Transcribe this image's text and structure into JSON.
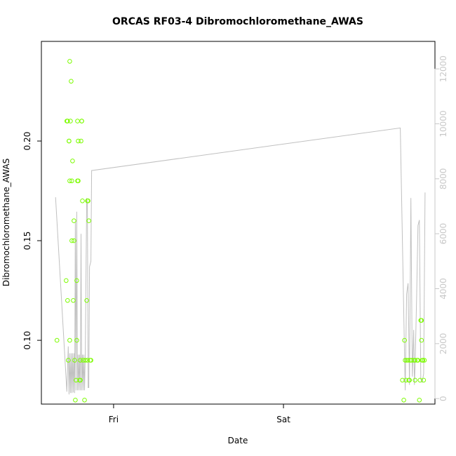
{
  "chart_data": {
    "type": "scatter",
    "title": "ORCAS RF03-4 Dibromochloromethane_AWAS",
    "xlabel": "Date",
    "ylabel": "Dibromochloromethane_AWAS",
    "x_ticks": [
      {
        "label": "Fri",
        "hours": 12
      },
      {
        "label": "Sat",
        "hours": 36
      }
    ],
    "xlim_hours": [
      1.8,
      57.4
    ],
    "ylim": [
      0.068,
      0.25
    ],
    "y_ticks": [
      "0.10",
      "0.15",
      "0.20"
    ],
    "y2lim": [
      -200,
      13000
    ],
    "y2_ticks": [
      "0",
      "2000",
      "4000",
      "6000",
      "8000",
      "10000",
      "12000"
    ],
    "grid": false,
    "point_color": "#7cfc00",
    "line_color": "#c0c0c0",
    "points": [
      [
        4.0,
        0.1
      ],
      [
        5.3,
        0.13
      ],
      [
        5.4,
        0.21
      ],
      [
        5.5,
        0.21
      ],
      [
        5.5,
        0.12
      ],
      [
        5.6,
        0.09
      ],
      [
        5.7,
        0.2
      ],
      [
        5.7,
        0.2
      ],
      [
        5.8,
        0.18
      ],
      [
        5.8,
        0.1
      ],
      [
        5.8,
        0.24
      ],
      [
        5.9,
        0.21
      ],
      [
        6.0,
        0.23
      ],
      [
        6.1,
        0.15
      ],
      [
        6.1,
        0.18
      ],
      [
        6.2,
        0.19
      ],
      [
        6.3,
        0.12
      ],
      [
        6.4,
        0.16
      ],
      [
        6.4,
        0.15
      ],
      [
        6.5,
        0.09
      ],
      [
        6.6,
        0.07
      ],
      [
        6.7,
        0.08
      ],
      [
        6.8,
        0.1
      ],
      [
        6.8,
        0.13
      ],
      [
        6.9,
        0.21
      ],
      [
        6.9,
        0.18
      ],
      [
        7.0,
        0.2
      ],
      [
        7.0,
        0.18
      ],
      [
        7.2,
        0.08
      ],
      [
        7.3,
        0.08
      ],
      [
        7.3,
        0.09
      ],
      [
        7.4,
        0.2
      ],
      [
        7.5,
        0.21
      ],
      [
        7.5,
        0.21
      ],
      [
        7.6,
        0.17
      ],
      [
        7.7,
        0.09
      ],
      [
        7.9,
        0.07
      ],
      [
        8.0,
        0.09
      ],
      [
        8.2,
        0.12
      ],
      [
        8.3,
        0.09
      ],
      [
        8.3,
        0.17
      ],
      [
        8.4,
        0.17
      ],
      [
        8.5,
        0.16
      ],
      [
        8.7,
        0.09
      ],
      [
        8.8,
        0.09
      ],
      [
        52.8,
        0.08
      ],
      [
        53.0,
        0.07
      ],
      [
        53.1,
        0.1
      ],
      [
        53.2,
        0.09
      ],
      [
        53.3,
        0.08
      ],
      [
        53.4,
        0.09
      ],
      [
        53.6,
        0.09
      ],
      [
        53.7,
        0.08
      ],
      [
        53.8,
        0.08
      ],
      [
        53.9,
        0.09
      ],
      [
        54.1,
        0.09
      ],
      [
        54.4,
        0.09
      ],
      [
        54.6,
        0.08
      ],
      [
        54.6,
        0.09
      ],
      [
        54.9,
        0.09
      ],
      [
        55.0,
        0.09
      ],
      [
        55.2,
        0.07
      ],
      [
        55.3,
        0.08
      ],
      [
        55.4,
        0.11
      ],
      [
        55.5,
        0.11
      ],
      [
        55.5,
        0.1
      ],
      [
        55.6,
        0.09
      ],
      [
        55.7,
        0.09
      ],
      [
        55.8,
        0.08
      ],
      [
        55.9,
        0.09
      ]
    ],
    "line": [
      [
        3.8,
        7330
      ],
      [
        5.4,
        250
      ],
      [
        5.6,
        1900
      ],
      [
        5.7,
        150
      ],
      [
        5.8,
        1650
      ],
      [
        5.9,
        200
      ],
      [
        6.0,
        1650
      ],
      [
        6.1,
        200
      ],
      [
        6.2,
        1650
      ],
      [
        6.3,
        220
      ],
      [
        6.4,
        1650
      ],
      [
        6.5,
        200
      ],
      [
        6.6,
        6450
      ],
      [
        6.7,
        300
      ],
      [
        6.8,
        6800
      ],
      [
        6.9,
        300
      ],
      [
        7.0,
        1600
      ],
      [
        7.1,
        300
      ],
      [
        7.2,
        1600
      ],
      [
        7.3,
        300
      ],
      [
        7.4,
        6000
      ],
      [
        7.5,
        300
      ],
      [
        7.6,
        1600
      ],
      [
        7.7,
        300
      ],
      [
        7.8,
        1600
      ],
      [
        7.9,
        300
      ],
      [
        8.0,
        1700
      ],
      [
        8.2,
        7300
      ],
      [
        8.3,
        7100
      ],
      [
        8.4,
        400
      ],
      [
        8.5,
        400
      ],
      [
        8.6,
        4800
      ],
      [
        8.8,
        5000
      ],
      [
        8.9,
        8300
      ],
      [
        52.5,
        9850
      ],
      [
        53.2,
        300
      ],
      [
        53.4,
        3800
      ],
      [
        53.6,
        4200
      ],
      [
        53.8,
        500
      ],
      [
        54.0,
        7300
      ],
      [
        54.2,
        800
      ],
      [
        54.4,
        2500
      ],
      [
        54.5,
        500
      ],
      [
        54.6,
        1200
      ],
      [
        54.8,
        3600
      ],
      [
        55.0,
        6300
      ],
      [
        55.2,
        6500
      ],
      [
        55.4,
        700
      ],
      [
        55.6,
        600
      ],
      [
        55.8,
        900
      ],
      [
        56.0,
        7500
      ]
    ]
  }
}
